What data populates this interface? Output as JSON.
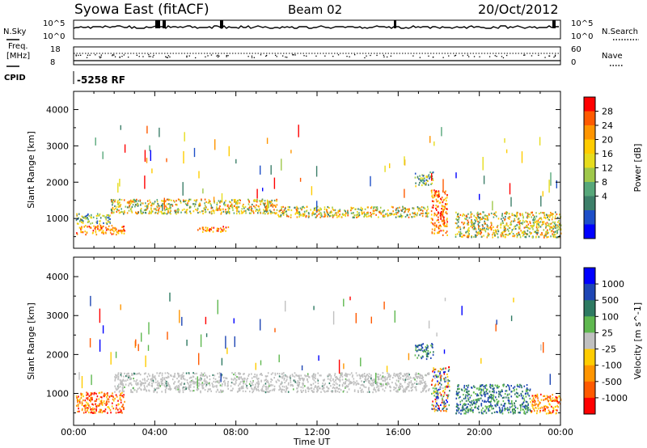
{
  "header": {
    "station": "Syowa East (fitACF)",
    "beam": "Beam 02",
    "date": "20/Oct/2012"
  },
  "top_panels": {
    "nsky_label": "N.Sky",
    "nsearch_label": "N.Search",
    "nsky_ticks": [
      "10^5",
      "10^0"
    ],
    "nsearch_ticks": [
      "10^5",
      "10^0"
    ],
    "freq_label": "Freq.",
    "freq_unit": "[MHz]",
    "freq_ticks": [
      "18",
      "8"
    ],
    "nave_label": "Nave",
    "nave_ticks": [
      "60",
      "0"
    ],
    "cpid_label": "CPID",
    "cpid_value": "-5258 RF"
  },
  "chart_data": [
    {
      "type": "heatmap",
      "panel": "power",
      "xlabel": "Time UT",
      "ylabel": "Slant Range [km]",
      "colorbar_label": "Power [dB]",
      "colorbar_ticks": [
        "28",
        "24",
        "20",
        "16",
        "12",
        "8",
        "4"
      ],
      "colorbar_colors": [
        "#ff0000",
        "#ff5a00",
        "#ff9500",
        "#ffcc00",
        "#e6dc1e",
        "#9fc84b",
        "#57a77a",
        "#3d7f6a",
        "#1e4fc8",
        "#0000ff"
      ],
      "x_ticks": [
        "00:00",
        "04:00",
        "08:00",
        "12:00",
        "16:00",
        "20:00",
        "00:00"
      ],
      "y_ticks": [
        "4000",
        "3000",
        "2000",
        "1000"
      ],
      "xlim_hours": [
        0,
        24
      ],
      "ylim_km": [
        180,
        4500
      ],
      "scatter_regions": [
        {
          "t0": 0.1,
          "t1": 2.5,
          "r0": 580,
          "r1": 830,
          "level": "high"
        },
        {
          "t0": 0.1,
          "t1": 1.8,
          "r0": 870,
          "r1": 1150,
          "level": "mid"
        },
        {
          "t0": 1.8,
          "t1": 10.0,
          "r0": 1150,
          "r1": 1550,
          "level": "mid-high"
        },
        {
          "t0": 10.0,
          "t1": 17.5,
          "r0": 1050,
          "r1": 1350,
          "level": "mid-high"
        },
        {
          "t0": 6.0,
          "t1": 7.6,
          "r0": 650,
          "r1": 800,
          "level": "high"
        },
        {
          "t0": 16.8,
          "t1": 17.7,
          "r0": 1900,
          "r1": 2300,
          "level": "mid"
        },
        {
          "t0": 17.6,
          "t1": 18.4,
          "r0": 560,
          "r1": 1800,
          "level": "high"
        },
        {
          "t0": 18.8,
          "t1": 24.0,
          "r0": 500,
          "r1": 1200,
          "level": "mid-high"
        }
      ]
    },
    {
      "type": "heatmap",
      "panel": "velocity",
      "xlabel": "Time UT",
      "ylabel": "Slant Range [km]",
      "colorbar_label": "Velocity [m s^-1]",
      "colorbar_ticks": [
        "1000",
        "500",
        "100",
        "25",
        "-25",
        "-100",
        "-500",
        "-1000"
      ],
      "colorbar_colors": [
        "#0000ff",
        "#1e46b4",
        "#2e7a62",
        "#5fb84f",
        "#c0c0c0",
        "#ffcc00",
        "#ff9500",
        "#ff5a00",
        "#ff0000"
      ],
      "x_ticks": [
        "00:00",
        "04:00",
        "08:00",
        "12:00",
        "16:00",
        "20:00",
        "00:00"
      ],
      "y_ticks": [
        "4000",
        "3000",
        "2000",
        "1000"
      ],
      "xlim_hours": [
        0,
        24
      ],
      "ylim_km": [
        180,
        4500
      ],
      "scatter_regions": [
        {
          "t0": 0.1,
          "t1": 2.5,
          "r0": 520,
          "r1": 1050,
          "vel": "negative"
        },
        {
          "t0": 2.0,
          "t1": 17.5,
          "r0": 1050,
          "r1": 1550,
          "vel": "ground-scatter"
        },
        {
          "t0": 16.8,
          "t1": 17.7,
          "r0": 1900,
          "r1": 2300,
          "vel": "positive"
        },
        {
          "t0": 17.6,
          "t1": 18.5,
          "r0": 560,
          "r1": 1700,
          "vel": "mixed"
        },
        {
          "t0": 18.8,
          "t1": 22.5,
          "r0": 500,
          "r1": 1250,
          "vel": "positive"
        },
        {
          "t0": 22.5,
          "t1": 24.0,
          "r0": 500,
          "r1": 1000,
          "vel": "negative"
        }
      ]
    }
  ]
}
